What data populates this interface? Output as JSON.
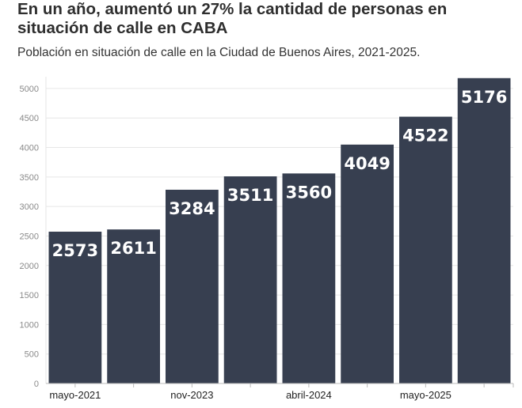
{
  "header": {
    "title": "En un año, aumentó un 27% la cantidad de personas en situación de calle en CABA",
    "subtitle": "Población en situación de calle en la Ciudad de Buenos Aires, 2021-2025."
  },
  "colors": {
    "bar": "#373f50",
    "grid": "#e6e6e6",
    "axis": "#bbbbbb",
    "label": "#ffffff"
  },
  "chart_data": {
    "type": "bar",
    "categories": [
      "mayo-2021",
      "",
      "nov-2023",
      "",
      "abril-2024",
      "",
      "mayo-2025",
      ""
    ],
    "values": [
      2573,
      2611,
      3284,
      3511,
      3560,
      4049,
      4522,
      5176
    ],
    "data_labels": [
      "2573",
      "2611",
      "3284",
      "3511",
      "3560",
      "4049",
      "4522",
      "5176"
    ],
    "x_tick_labels": [
      "mayo-2021",
      "nov-2023",
      "abril-2024",
      "mayo-2025"
    ],
    "y_ticks": [
      0,
      500,
      1000,
      1500,
      2000,
      2500,
      3000,
      3500,
      4000,
      4500,
      5000
    ],
    "ylim": [
      0,
      5200
    ],
    "grid": true,
    "legend": "none"
  }
}
